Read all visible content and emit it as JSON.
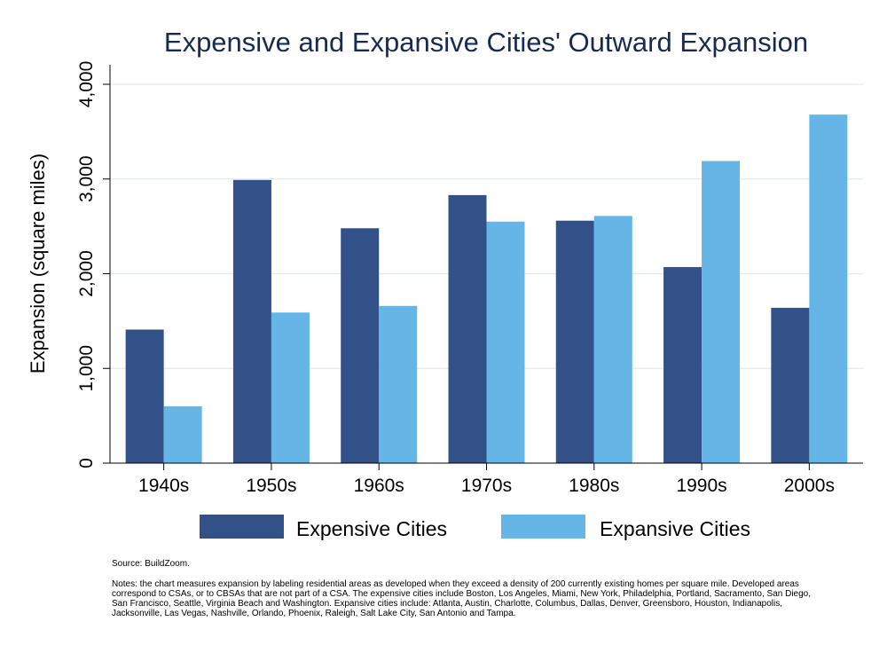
{
  "chart_data": {
    "type": "bar",
    "title": "Expensive and Expansive Cities' Outward Expansion",
    "xlabel": "",
    "ylabel": "Expansion (square miles)",
    "categories": [
      "1940s",
      "1950s",
      "1960s",
      "1970s",
      "1980s",
      "1990s",
      "2000s"
    ],
    "series": [
      {
        "name": "Expensive Cities",
        "color": "#335189",
        "values": [
          1410,
          2990,
          2480,
          2830,
          2560,
          2070,
          1640
        ]
      },
      {
        "name": "Expansive Cities",
        "color": "#65b6e6",
        "values": [
          600,
          1590,
          1660,
          2550,
          2610,
          3190,
          3680
        ]
      }
    ],
    "ylim": [
      0,
      4000
    ],
    "yticks": [
      0,
      1000,
      2000,
      3000,
      4000
    ],
    "ytick_labels": [
      "0",
      "1,000",
      "2,000",
      "3,000",
      "4,000"
    ],
    "grid": true,
    "legend_position": "bottom"
  },
  "source": "Source: BuildZoom.",
  "notes": "Notes: the chart measures expansion by labeling residential areas as developed when they exceed a density of 200 currently existing homes per square mile. Developed areas correspond to CSAs, or to CBSAs that are not part of a CSA. The expensive cities include Boston, Los Angeles, Miami, New York, Philadelphia, Portland, Sacramento, San Diego, San Francisco, Seattle, Virginia Beach and Washington. Expansive cities include: Atlanta, Austin, Charlotte, Columbus, Dallas, Denver, Greensboro, Houston, Indianapolis, Jacksonville, Las Vegas, Nashville, Orlando, Phoenix, Raleigh, Salt Lake City, San Antonio and Tampa."
}
